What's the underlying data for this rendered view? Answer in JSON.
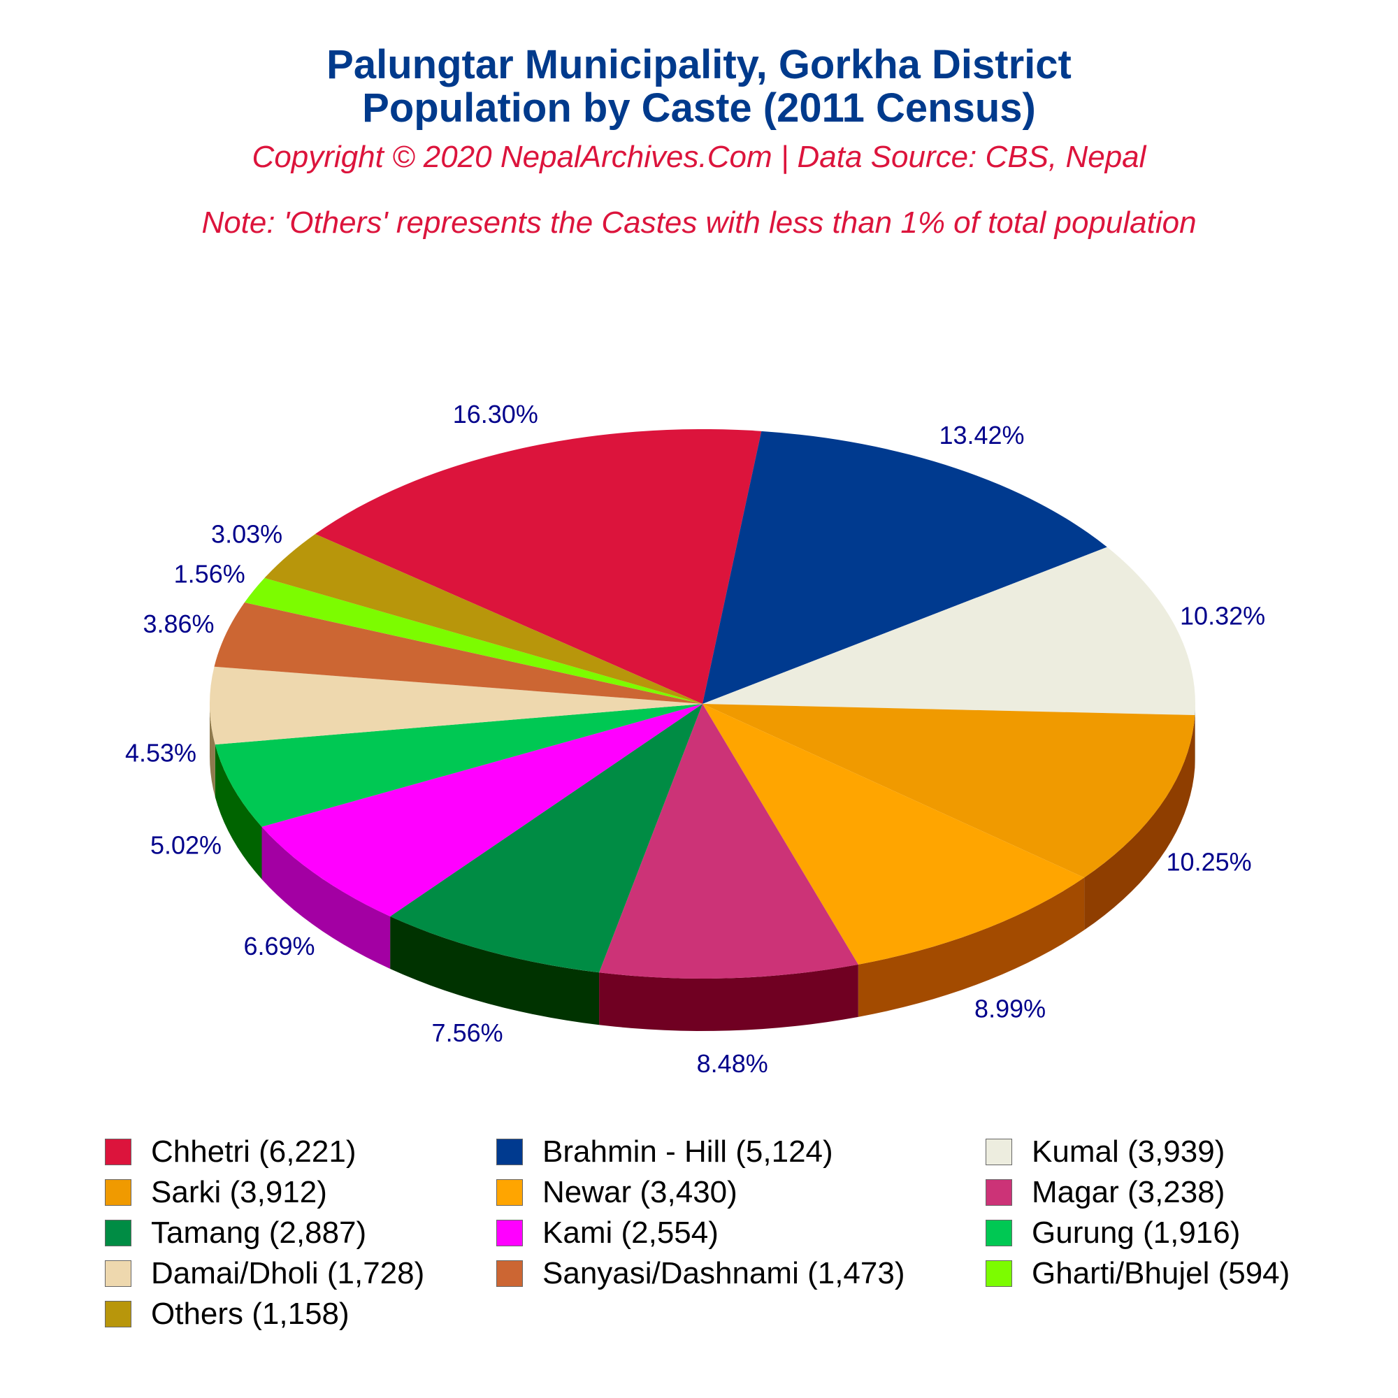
{
  "title_line1": "Palungtar Municipality, Gorkha District",
  "title_line2": "Population by Caste (2011 Census)",
  "copyright": "Copyright © 2020 NepalArchives.Com | Data Source: CBS, Nepal",
  "note": "Note: 'Others' represents the Castes with less than 1% of total population",
  "chart_data": {
    "type": "pie",
    "style": "3d",
    "slices": [
      {
        "name": "Chhetri",
        "value": 6221,
        "percent": "16.30%",
        "legend": "Chhetri (6,221)",
        "color": "#dc143c",
        "side_color": "#8b0a22"
      },
      {
        "name": "Brahmin - Hill",
        "value": 5124,
        "percent": "13.42%",
        "legend": "Brahmin - Hill (5,124)",
        "color": "#003a8f",
        "side_color": "#001f4d"
      },
      {
        "name": "Kumal",
        "value": 3939,
        "percent": "10.32%",
        "legend": "Kumal (3,939)",
        "color": "#ededdf",
        "side_color": "#a8a898"
      },
      {
        "name": "Sarki",
        "value": 3912,
        "percent": "10.25%",
        "legend": "Sarki (3,912)",
        "color": "#f09a00",
        "side_color": "#8f3e00"
      },
      {
        "name": "Newar",
        "value": 3430,
        "percent": "8.99%",
        "legend": "Newar (3,430)",
        "color": "#ffa500",
        "side_color": "#a34b00"
      },
      {
        "name": "Magar",
        "value": 3238,
        "percent": "8.48%",
        "legend": "Magar (3,238)",
        "color": "#cc3377",
        "side_color": "#700022"
      },
      {
        "name": "Tamang",
        "value": 2887,
        "percent": "7.56%",
        "legend": "Tamang (2,887)",
        "color": "#008c44",
        "side_color": "#003300"
      },
      {
        "name": "Kami",
        "value": 2554,
        "percent": "6.69%",
        "legend": "Kami (2,554)",
        "color": "#ff00ff",
        "side_color": "#a300a3"
      },
      {
        "name": "Gurung",
        "value": 1916,
        "percent": "5.02%",
        "legend": "Gurung (1,916)",
        "color": "#00c853",
        "side_color": "#006400"
      },
      {
        "name": "Damai/Dholi",
        "value": 1728,
        "percent": "4.53%",
        "legend": "Damai/Dholi (1,728)",
        "color": "#eed8ae",
        "side_color": "#8f7a4e"
      },
      {
        "name": "Sanyasi/Dashnami",
        "value": 1473,
        "percent": "3.86%",
        "legend": "Sanyasi/Dashnami (1,473)",
        "color": "#cc6633",
        "side_color": "#7a3010"
      },
      {
        "name": "Gharti/Bhujel",
        "value": 594,
        "percent": "1.56%",
        "legend": "Gharti/Bhujel (594)",
        "color": "#7cfc00",
        "side_color": "#3a8000"
      },
      {
        "name": "Others",
        "value": 1158,
        "percent": "3.03%",
        "legend": "Others (1,158)",
        "color": "#b8960b",
        "side_color": "#6b5500"
      }
    ],
    "legend_position": "bottom"
  }
}
